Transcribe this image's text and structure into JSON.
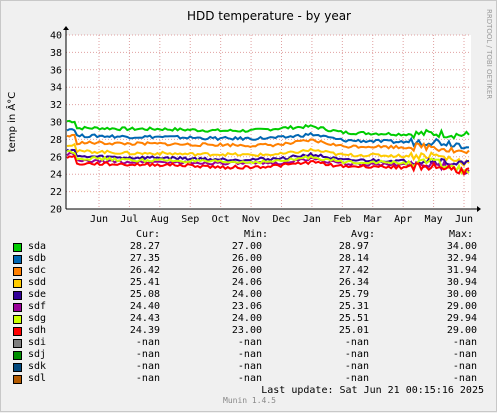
{
  "title": "HDD temperature - by year",
  "watermark": "RRDTOOL / TOBI OETIKER",
  "footer": "Munin 1.4.5",
  "last_update": "Last update: Sat Jun 21 00:15:16 2025",
  "legend_headers": {
    "cur": "Cur:",
    "min": "Min:",
    "avg": "Avg:",
    "max": "Max:"
  },
  "legend": [
    {
      "name": "sda",
      "color": "#00cc00",
      "cur": "28.27",
      "min": "27.00",
      "avg": "28.97",
      "max": "34.00"
    },
    {
      "name": "sdb",
      "color": "#0066b3",
      "cur": "27.35",
      "min": "26.00",
      "avg": "28.14",
      "max": "32.94"
    },
    {
      "name": "sdc",
      "color": "#ff8000",
      "cur": "26.42",
      "min": "26.00",
      "avg": "27.42",
      "max": "31.94"
    },
    {
      "name": "sdd",
      "color": "#ffcc00",
      "cur": "25.41",
      "min": "24.06",
      "avg": "26.34",
      "max": "30.94"
    },
    {
      "name": "sde",
      "color": "#330099",
      "cur": "25.08",
      "min": "24.00",
      "avg": "25.79",
      "max": "30.00"
    },
    {
      "name": "sdf",
      "color": "#990099",
      "cur": "24.40",
      "min": "23.06",
      "avg": "25.31",
      "max": "29.00"
    },
    {
      "name": "sdg",
      "color": "#ccff00",
      "cur": "24.43",
      "min": "24.00",
      "avg": "25.51",
      "max": "29.94"
    },
    {
      "name": "sdh",
      "color": "#ff0000",
      "cur": "24.39",
      "min": "23.00",
      "avg": "25.01",
      "max": "29.00"
    },
    {
      "name": "sdi",
      "color": "#808080",
      "cur": "-nan",
      "min": "-nan",
      "avg": "-nan",
      "max": "-nan"
    },
    {
      "name": "sdj",
      "color": "#008f00",
      "cur": "-nan",
      "min": "-nan",
      "avg": "-nan",
      "max": "-nan"
    },
    {
      "name": "sdk",
      "color": "#00487d",
      "cur": "-nan",
      "min": "-nan",
      "avg": "-nan",
      "max": "-nan"
    },
    {
      "name": "sdl",
      "color": "#b35a00",
      "cur": "-nan",
      "min": "-nan",
      "avg": "-nan",
      "max": "-nan"
    }
  ],
  "chart_data": {
    "type": "line",
    "title": "HDD temperature - by year",
    "ylabel": "temp in Â°C",
    "xlabel": "",
    "ylim": [
      20,
      40
    ],
    "yticks": [
      20,
      22,
      24,
      26,
      28,
      30,
      32,
      34,
      36,
      38,
      40
    ],
    "grid": true,
    "x_categories": [
      "Jun",
      "Jul",
      "Aug",
      "Sep",
      "Oct",
      "Nov",
      "Dec",
      "Jan",
      "Feb",
      "Mar",
      "Apr",
      "May",
      "Jun"
    ],
    "series": [
      {
        "name": "sda",
        "color": "#00cc00",
        "values": [
          29.3,
          29.2,
          29.2,
          29.1,
          29.0,
          29.0,
          29.3,
          29.5,
          28.8,
          28.7,
          28.6,
          28.7,
          28.5
        ]
      },
      {
        "name": "sdb",
        "color": "#0066b3",
        "values": [
          28.4,
          28.3,
          28.3,
          28.2,
          28.1,
          28.1,
          28.2,
          28.6,
          27.9,
          27.8,
          27.7,
          27.8,
          27.4
        ]
      },
      {
        "name": "sdc",
        "color": "#ff8000",
        "values": [
          27.6,
          27.5,
          27.5,
          27.4,
          27.4,
          27.3,
          27.4,
          27.9,
          27.2,
          27.2,
          27.1,
          27.2,
          26.5
        ]
      },
      {
        "name": "sdd",
        "color": "#ffcc00",
        "values": [
          26.6,
          26.4,
          26.4,
          26.3,
          26.3,
          26.2,
          26.3,
          26.8,
          26.2,
          26.2,
          26.1,
          26.2,
          25.4
        ]
      },
      {
        "name": "sde",
        "color": "#330099",
        "values": [
          26.0,
          25.9,
          25.9,
          25.8,
          25.7,
          25.7,
          25.8,
          26.3,
          25.6,
          25.6,
          25.5,
          25.6,
          25.1
        ]
      },
      {
        "name": "sdf",
        "color": "#990099",
        "values": [
          25.5,
          25.4,
          25.4,
          25.3,
          25.3,
          25.2,
          25.3,
          25.8,
          25.2,
          25.1,
          25.1,
          25.2,
          24.4
        ]
      },
      {
        "name": "sdg",
        "color": "#ccff00",
        "values": [
          25.8,
          25.6,
          25.6,
          25.5,
          25.4,
          25.4,
          25.5,
          26.0,
          25.4,
          25.4,
          25.3,
          25.4,
          24.4
        ]
      },
      {
        "name": "sdh",
        "color": "#ff0000",
        "values": [
          25.2,
          25.1,
          25.1,
          25.0,
          24.8,
          24.8,
          25.0,
          25.4,
          24.9,
          24.9,
          24.8,
          24.9,
          24.4
        ]
      }
    ]
  }
}
